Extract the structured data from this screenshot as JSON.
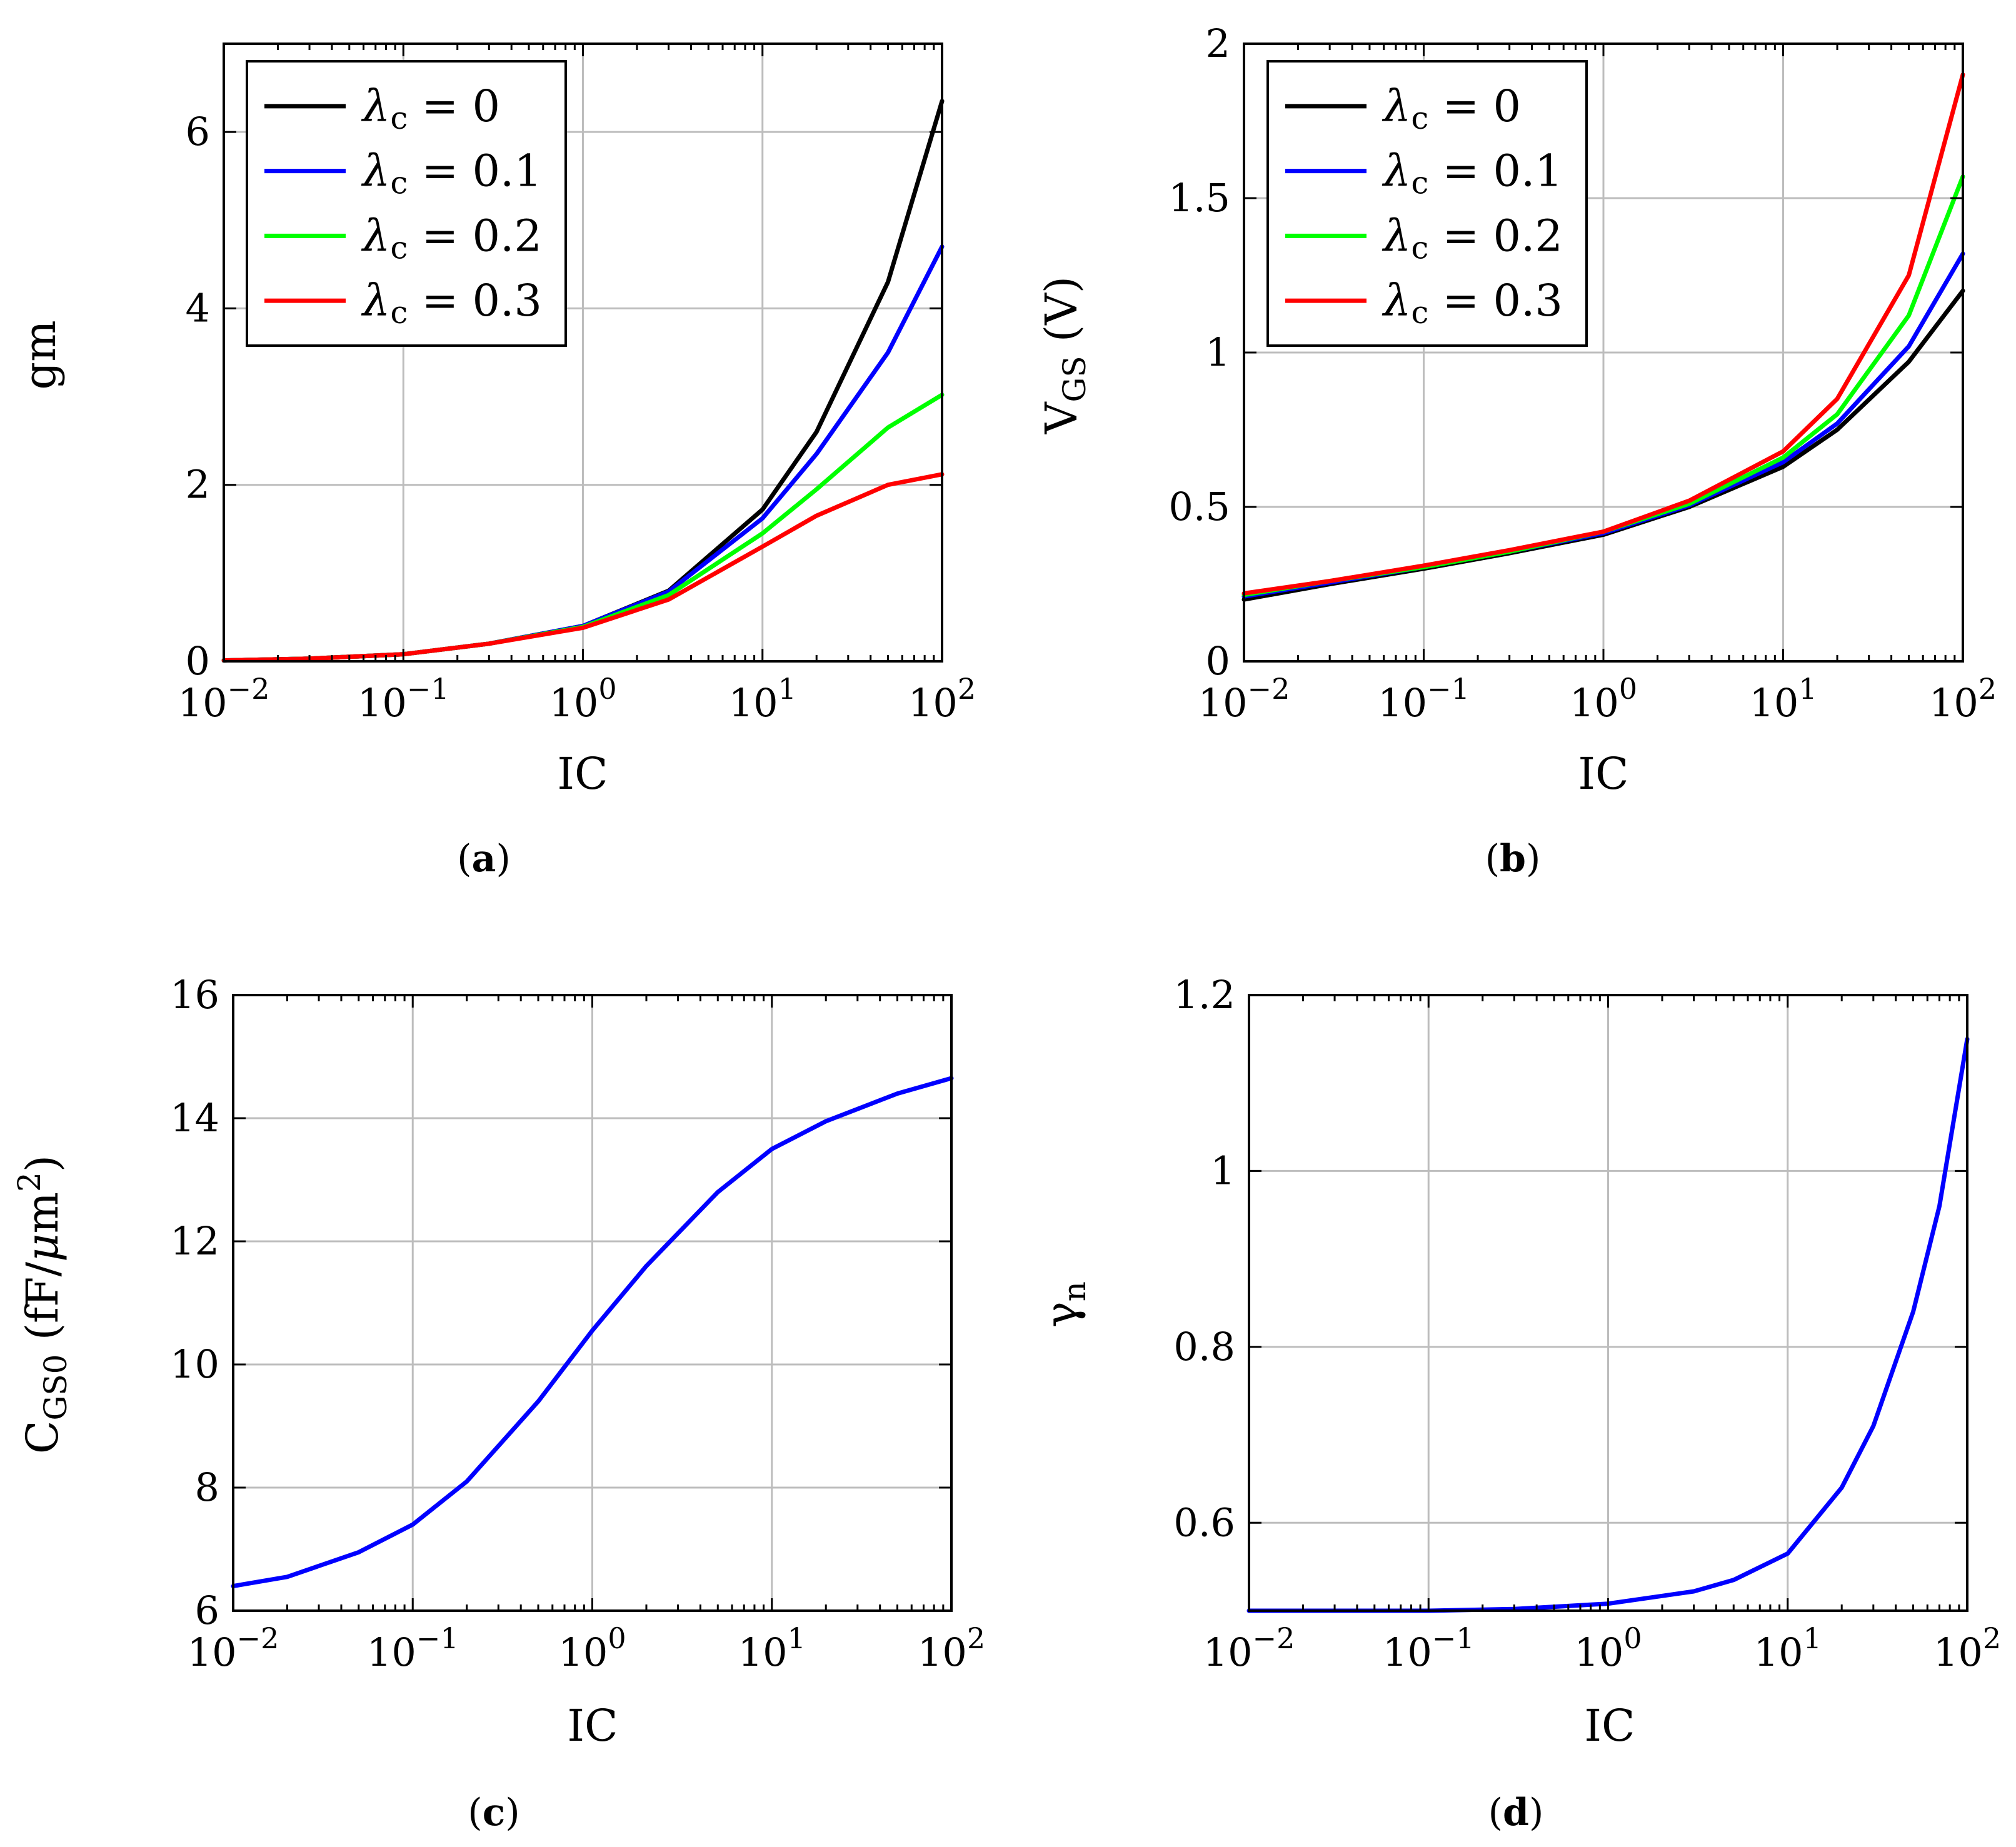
{
  "figure_title": "",
  "chart_data": [
    {
      "id": "a",
      "type": "line",
      "caption": "(a)",
      "caption_letter": "a",
      "xlabel": "IC",
      "ylabel": "gm",
      "xscale": "log",
      "xlim": [
        0.01,
        100
      ],
      "ylim": [
        0,
        7
      ],
      "xticks": [
        0.01,
        0.1,
        1,
        10,
        100
      ],
      "xtick_labels": [
        {
          "base": "10",
          "exp": "−2"
        },
        {
          "base": "10",
          "exp": "−1"
        },
        {
          "base": "10",
          "exp": "0"
        },
        {
          "base": "10",
          "exp": "1"
        },
        {
          "base": "10",
          "exp": "2"
        }
      ],
      "yticks": [
        0,
        2,
        4,
        6
      ],
      "ytick_labels": [
        "0",
        "2",
        "4",
        "6"
      ],
      "grid": true,
      "legend_position": "top-left",
      "series": [
        {
          "name": "λc = 0",
          "legend_symbol": "λ",
          "legend_sub": "c",
          "legend_value": " = 0",
          "color": "#000000",
          "x": [
            0.01,
            0.03,
            0.1,
            0.3,
            1,
            3,
            10,
            20,
            50,
            100
          ],
          "y": [
            0.01,
            0.03,
            0.08,
            0.2,
            0.4,
            0.8,
            1.72,
            2.6,
            4.3,
            6.35
          ]
        },
        {
          "name": "λc = 0.1",
          "legend_symbol": "λ",
          "legend_sub": "c",
          "legend_value": " = 0.1",
          "color": "#0000ff",
          "x": [
            0.01,
            0.03,
            0.1,
            0.3,
            1,
            3,
            10,
            20,
            50,
            100
          ],
          "y": [
            0.01,
            0.03,
            0.08,
            0.2,
            0.4,
            0.79,
            1.62,
            2.35,
            3.5,
            4.7
          ]
        },
        {
          "name": "λc = 0.2",
          "legend_symbol": "λ",
          "legend_sub": "c",
          "legend_value": " = 0.2",
          "color": "#00ff00",
          "x": [
            0.01,
            0.03,
            0.1,
            0.3,
            1,
            3,
            10,
            20,
            50,
            100
          ],
          "y": [
            0.01,
            0.03,
            0.08,
            0.2,
            0.39,
            0.75,
            1.45,
            1.95,
            2.65,
            3.02
          ]
        },
        {
          "name": "λc = 0.3",
          "legend_symbol": "λ",
          "legend_sub": "c",
          "legend_value": " = 0.3",
          "color": "#ff0000",
          "x": [
            0.01,
            0.03,
            0.1,
            0.3,
            1,
            3,
            10,
            20,
            50,
            100
          ],
          "y": [
            0.01,
            0.03,
            0.08,
            0.2,
            0.38,
            0.7,
            1.3,
            1.65,
            2.0,
            2.12
          ]
        }
      ]
    },
    {
      "id": "b",
      "type": "line",
      "caption": "(b)",
      "caption_letter": "b",
      "xlabel": "IC",
      "ylabel": "VGS (V)",
      "ylabel_main": "V",
      "ylabel_sub": "GS",
      "ylabel_tail": " (V)",
      "xscale": "log",
      "xlim": [
        0.01,
        100
      ],
      "ylim": [
        0,
        2
      ],
      "xticks": [
        0.01,
        0.1,
        1,
        10,
        100
      ],
      "xtick_labels": [
        {
          "base": "10",
          "exp": "−2"
        },
        {
          "base": "10",
          "exp": "−1"
        },
        {
          "base": "10",
          "exp": "0"
        },
        {
          "base": "10",
          "exp": "1"
        },
        {
          "base": "10",
          "exp": "2"
        }
      ],
      "yticks": [
        0,
        0.5,
        1,
        1.5,
        2
      ],
      "ytick_labels": [
        "0",
        "0.5",
        "1",
        "1.5",
        "2"
      ],
      "grid": true,
      "legend_position": "top-left",
      "series": [
        {
          "name": "λc = 0",
          "legend_symbol": "λ",
          "legend_sub": "c",
          "legend_value": " = 0",
          "color": "#000000",
          "x": [
            0.01,
            0.03,
            0.1,
            0.3,
            1,
            3,
            10,
            20,
            50,
            100
          ],
          "y": [
            0.2,
            0.25,
            0.3,
            0.35,
            0.41,
            0.5,
            0.63,
            0.75,
            0.97,
            1.2
          ]
        },
        {
          "name": "λc = 0.1",
          "legend_symbol": "λ",
          "legend_sub": "c",
          "legend_value": " = 0.1",
          "color": "#0000ff",
          "x": [
            0.01,
            0.03,
            0.1,
            0.3,
            1,
            3,
            10,
            20,
            50,
            100
          ],
          "y": [
            0.21,
            0.255,
            0.305,
            0.355,
            0.415,
            0.505,
            0.645,
            0.77,
            1.02,
            1.32
          ]
        },
        {
          "name": "λc = 0.2",
          "legend_symbol": "λ",
          "legend_sub": "c",
          "legend_value": " = 0.2",
          "color": "#00ff00",
          "x": [
            0.01,
            0.03,
            0.1,
            0.3,
            1,
            3,
            10,
            20,
            50,
            100
          ],
          "y": [
            0.215,
            0.26,
            0.305,
            0.355,
            0.42,
            0.51,
            0.66,
            0.8,
            1.12,
            1.57
          ]
        },
        {
          "name": "λc = 0.3",
          "legend_symbol": "λ",
          "legend_sub": "c",
          "legend_value": " = 0.3",
          "color": "#ff0000",
          "x": [
            0.01,
            0.03,
            0.1,
            0.3,
            1,
            3,
            10,
            20,
            50,
            100
          ],
          "y": [
            0.22,
            0.26,
            0.31,
            0.36,
            0.42,
            0.52,
            0.68,
            0.85,
            1.25,
            1.9
          ]
        }
      ]
    },
    {
      "id": "c",
      "type": "line",
      "caption": "(c)",
      "caption_letter": "c",
      "xlabel": "IC",
      "ylabel": "CGS0 (fF/μm2)",
      "ylabel_main": "C",
      "ylabel_sub": "GS0",
      "ylabel_tail": " (fF/",
      "ylabel_mu": "μ",
      "ylabel_unit": "m",
      "ylabel_sup": "2",
      "ylabel_close": ")",
      "xscale": "log",
      "xlim": [
        0.01,
        100
      ],
      "ylim": [
        6,
        16
      ],
      "xticks": [
        0.01,
        0.1,
        1,
        10,
        100
      ],
      "xtick_labels": [
        {
          "base": "10",
          "exp": "−2"
        },
        {
          "base": "10",
          "exp": "−1"
        },
        {
          "base": "10",
          "exp": "0"
        },
        {
          "base": "10",
          "exp": "1"
        },
        {
          "base": "10",
          "exp": "2"
        }
      ],
      "yticks": [
        6,
        8,
        10,
        12,
        14,
        16
      ],
      "ytick_labels": [
        "6",
        "8",
        "10",
        "12",
        "14",
        "16"
      ],
      "grid": true,
      "series": [
        {
          "name": "CGS0",
          "color": "#0000ff",
          "x": [
            0.01,
            0.02,
            0.05,
            0.1,
            0.2,
            0.5,
            1,
            2,
            5,
            10,
            20,
            50,
            100
          ],
          "y": [
            6.4,
            6.55,
            6.95,
            7.4,
            8.1,
            9.4,
            10.55,
            11.6,
            12.8,
            13.5,
            13.95,
            14.4,
            14.65
          ]
        }
      ]
    },
    {
      "id": "d",
      "type": "line",
      "caption": "(d)",
      "caption_letter": "d",
      "xlabel": "IC",
      "ylabel": "γn",
      "ylabel_main": "γ",
      "ylabel_sub": "n",
      "xscale": "log",
      "xlim": [
        0.01,
        100
      ],
      "ylim": [
        0.5,
        1.2
      ],
      "xticks": [
        0.01,
        0.1,
        1,
        10,
        100
      ],
      "xtick_labels": [
        {
          "base": "10",
          "exp": "−2"
        },
        {
          "base": "10",
          "exp": "−1"
        },
        {
          "base": "10",
          "exp": "0"
        },
        {
          "base": "10",
          "exp": "1"
        },
        {
          "base": "10",
          "exp": "2"
        }
      ],
      "yticks": [
        0.6,
        0.8,
        1,
        1.2
      ],
      "ytick_labels": [
        "0.6",
        "0.8",
        "1",
        "1.2"
      ],
      "grid": true,
      "series": [
        {
          "name": "γn",
          "color": "#0000ff",
          "x": [
            0.01,
            0.1,
            0.3,
            1,
            3,
            5,
            10,
            20,
            30,
            50,
            70,
            100
          ],
          "y": [
            0.5,
            0.5,
            0.502,
            0.508,
            0.522,
            0.535,
            0.565,
            0.64,
            0.71,
            0.84,
            0.96,
            1.15
          ]
        }
      ]
    }
  ]
}
